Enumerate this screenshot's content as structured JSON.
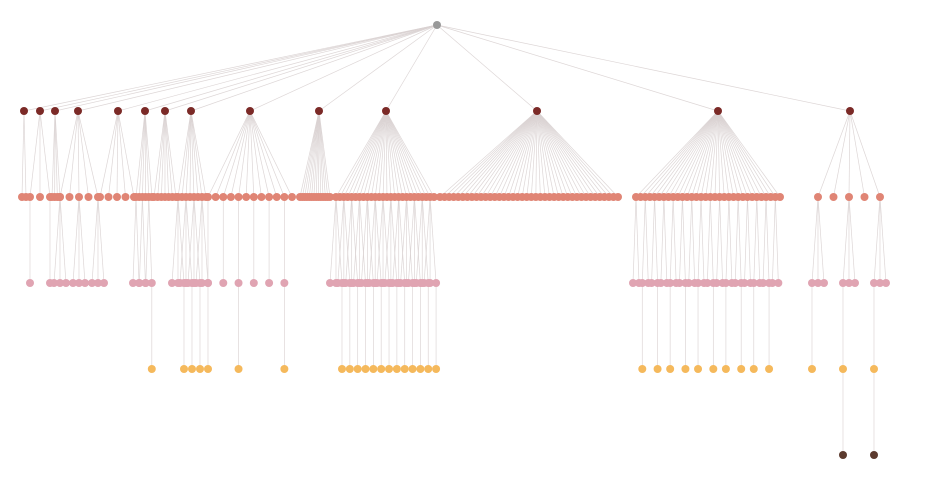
{
  "diagram": {
    "type": "tree",
    "depth_levels": 6,
    "colors": {
      "root": "#999999",
      "level1": "#7b2a27",
      "level2": "#e08575",
      "level3": "#e0a4b2",
      "level4": "#f5b95c",
      "level5": "#5c3a2e",
      "edge": "#d9d2d2"
    },
    "branch_child_counts": [
      2,
      3,
      4,
      5,
      5,
      6,
      7,
      8,
      12,
      14,
      26,
      40,
      32,
      5
    ],
    "grandchild_pattern": [
      0,
      1,
      0,
      3,
      0,
      2,
      0,
      5,
      1,
      0,
      4,
      0,
      2,
      6
    ],
    "deep_leaf_count": 2
  }
}
